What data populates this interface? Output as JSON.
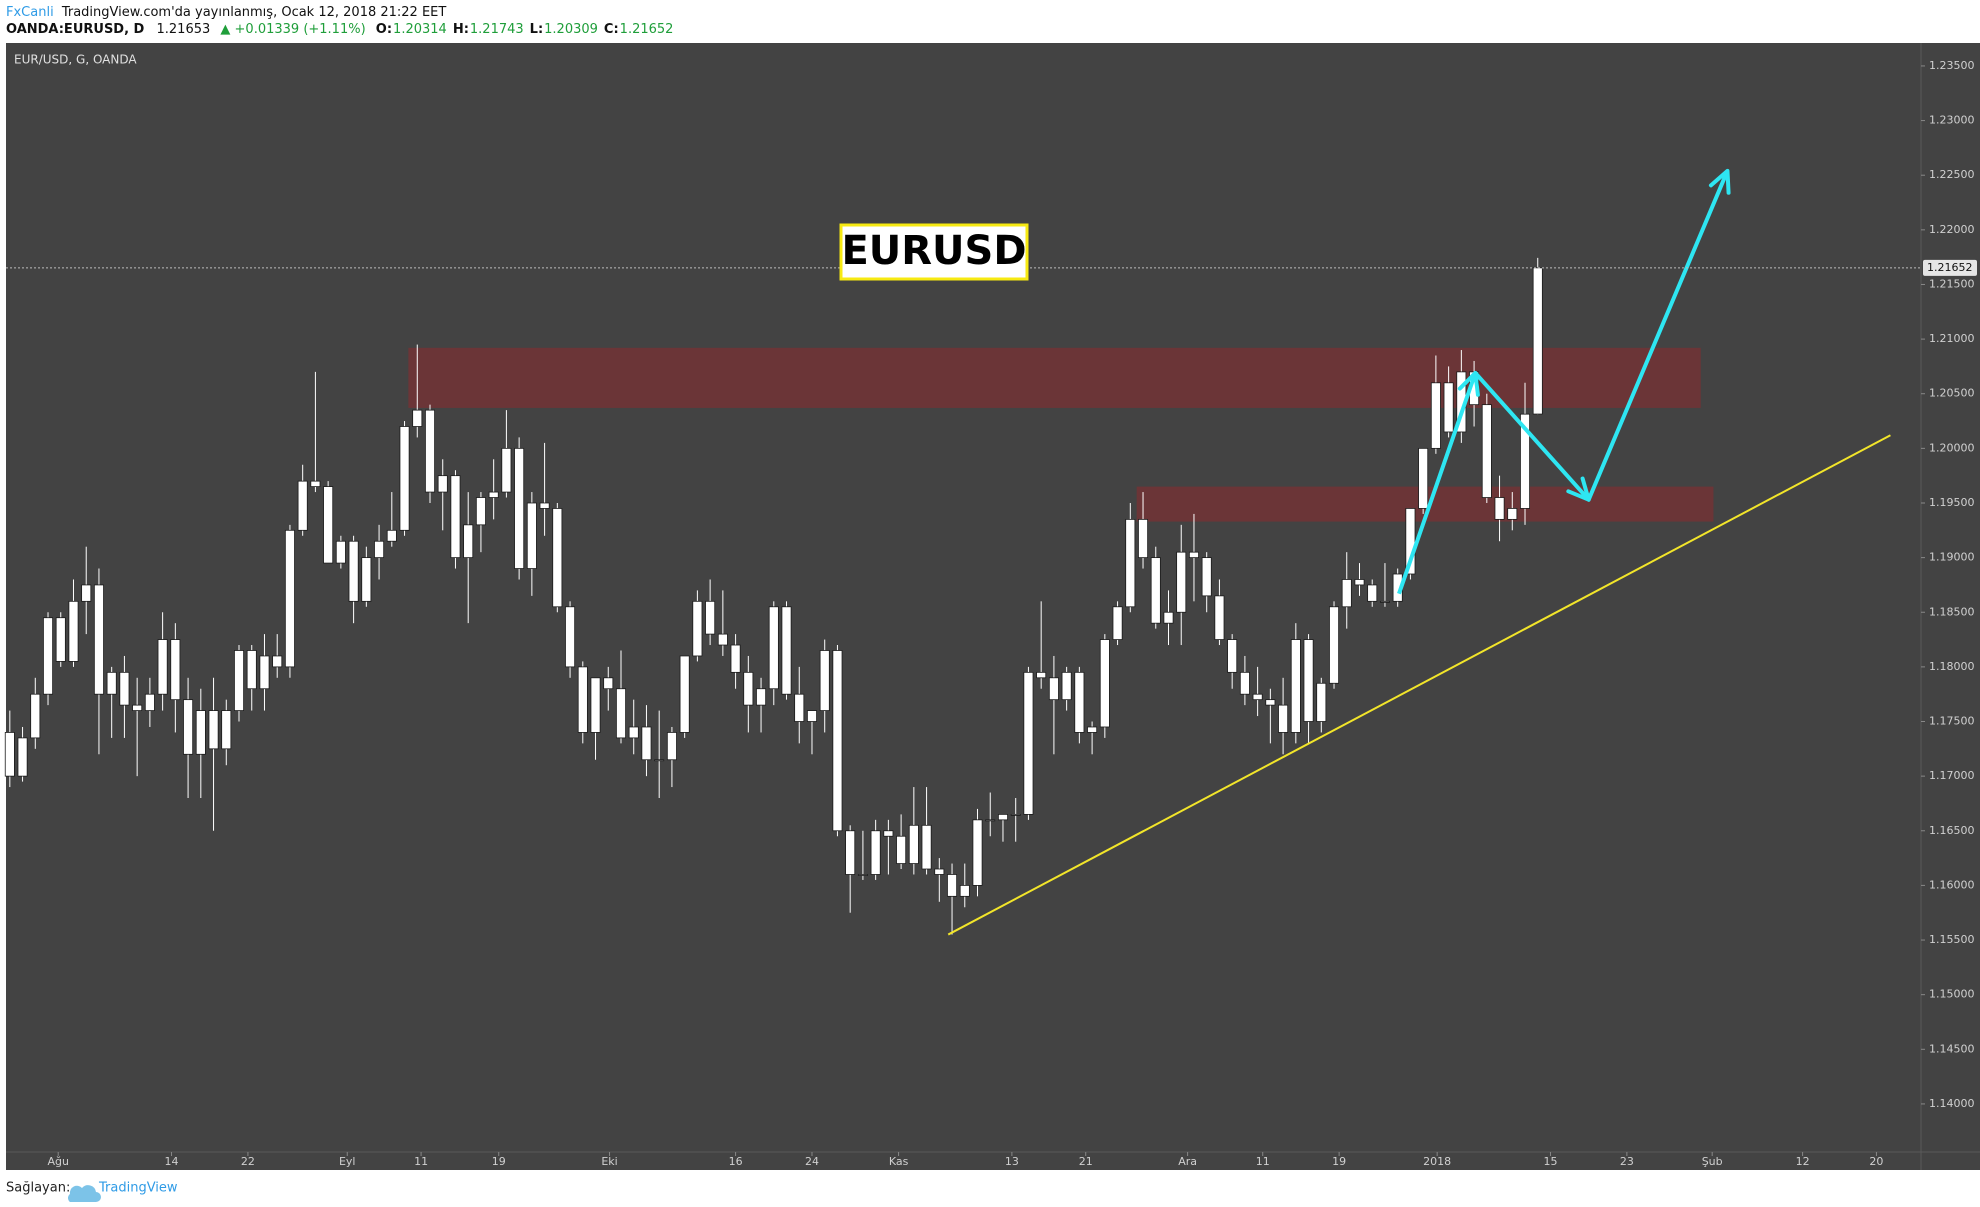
{
  "header": {
    "author": "FxCanli",
    "published": "TradingView.com'da yayınlanmış, Ocak 12, 2018 21:22 EET",
    "symbol": "OANDA:EURUSD, D",
    "last": "1.21653",
    "change": "▲ +0.01339 (+1.11%)",
    "ohlc": [
      {
        "label": "O:",
        "value": "1.20314"
      },
      {
        "label": "H:",
        "value": "1.21743"
      },
      {
        "label": "L:",
        "value": "1.20309"
      },
      {
        "label": "C:",
        "value": "1.21652"
      }
    ]
  },
  "chart_data": {
    "type": "candlestick",
    "title": "EUR/USD, G, OANDA",
    "annotation": "EURUSD",
    "color": "#ffffff",
    "border_color": "#1a1a1a",
    "open": [
      1.174,
      1.17,
      1.1735,
      1.1775,
      1.1845,
      1.1805,
      1.186,
      1.1875,
      1.1775,
      1.1795,
      1.1765,
      1.176,
      1.1775,
      1.1825,
      1.177,
      1.172,
      1.176,
      1.1725,
      1.176,
      1.1815,
      1.178,
      1.181,
      1.18,
      1.1925,
      1.197,
      1.1965,
      1.1895,
      1.1915,
      1.186,
      1.19,
      1.1915,
      1.1925,
      1.202,
      1.2035,
      1.196,
      1.1975,
      1.19,
      1.193,
      1.1955,
      1.196,
      1.2,
      1.189,
      1.195,
      1.1945,
      1.1855,
      1.18,
      1.174,
      1.179,
      1.178,
      1.1735,
      1.1745,
      1.1715,
      1.1715,
      1.174,
      1.181,
      1.186,
      1.183,
      1.182,
      1.1795,
      1.1765,
      1.178,
      1.1855,
      1.1775,
      1.175,
      1.176,
      1.1815,
      1.165,
      1.161,
      1.161,
      1.165,
      1.1645,
      1.162,
      1.1655,
      1.1615,
      1.161,
      1.159,
      1.16,
      1.166,
      1.166,
      1.1665,
      1.1665,
      1.1795,
      1.179,
      1.177,
      1.1795,
      1.174,
      1.1745,
      1.1825,
      1.1855,
      1.1935,
      1.19,
      1.184,
      1.185,
      1.1905,
      1.19,
      1.1865,
      1.1825,
      1.1795,
      1.1775,
      1.177,
      1.1765,
      1.174,
      1.1825,
      1.175,
      1.1785,
      1.1855,
      1.188,
      1.1875,
      1.186,
      1.186,
      1.1885,
      1.1945,
      1.2,
      1.206,
      1.2015,
      1.207,
      1.204,
      1.1955,
      1.1935,
      1.1945,
      1.20314
    ],
    "high": [
      1.176,
      1.1745,
      1.179,
      1.185,
      1.185,
      1.188,
      1.191,
      1.189,
      1.18,
      1.181,
      1.179,
      1.179,
      1.185,
      1.184,
      1.179,
      1.178,
      1.179,
      1.177,
      1.182,
      1.182,
      1.183,
      1.183,
      1.193,
      1.1985,
      1.207,
      1.197,
      1.192,
      1.192,
      1.191,
      1.193,
      1.196,
      1.2025,
      1.2095,
      1.204,
      1.199,
      1.198,
      1.196,
      1.196,
      1.199,
      1.2035,
      1.201,
      1.196,
      1.2005,
      1.195,
      1.186,
      1.1805,
      1.179,
      1.18,
      1.1815,
      1.177,
      1.1765,
      1.176,
      1.1745,
      1.181,
      1.187,
      1.188,
      1.187,
      1.183,
      1.181,
      1.179,
      1.186,
      1.186,
      1.18,
      1.176,
      1.1825,
      1.182,
      1.1655,
      1.165,
      1.166,
      1.166,
      1.1665,
      1.169,
      1.169,
      1.1625,
      1.162,
      1.162,
      1.167,
      1.1685,
      1.1665,
      1.168,
      1.18,
      1.186,
      1.181,
      1.18,
      1.18,
      1.175,
      1.183,
      1.186,
      1.195,
      1.196,
      1.191,
      1.187,
      1.193,
      1.194,
      1.1905,
      1.188,
      1.183,
      1.181,
      1.18,
      1.178,
      1.179,
      1.184,
      1.183,
      1.179,
      1.186,
      1.1905,
      1.1895,
      1.188,
      1.1895,
      1.189,
      1.1945,
      1.2,
      1.2085,
      1.2075,
      1.209,
      1.208,
      1.205,
      1.1975,
      1.196,
      1.206,
      1.21743
    ],
    "low": [
      1.169,
      1.1695,
      1.1725,
      1.1765,
      1.18,
      1.18,
      1.183,
      1.172,
      1.1735,
      1.1735,
      1.17,
      1.1745,
      1.176,
      1.174,
      1.168,
      1.168,
      1.165,
      1.171,
      1.175,
      1.176,
      1.176,
      1.179,
      1.179,
      1.192,
      1.196,
      1.1895,
      1.189,
      1.184,
      1.1855,
      1.188,
      1.191,
      1.192,
      1.201,
      1.195,
      1.1925,
      1.189,
      1.184,
      1.1905,
      1.1935,
      1.1955,
      1.188,
      1.1865,
      1.192,
      1.185,
      1.179,
      1.173,
      1.1715,
      1.176,
      1.173,
      1.172,
      1.17,
      1.168,
      1.169,
      1.1735,
      1.1805,
      1.182,
      1.181,
      1.178,
      1.174,
      1.174,
      1.1765,
      1.177,
      1.173,
      1.172,
      1.174,
      1.1645,
      1.1575,
      1.1605,
      1.1605,
      1.161,
      1.1615,
      1.161,
      1.161,
      1.1585,
      1.1555,
      1.158,
      1.159,
      1.1645,
      1.164,
      1.164,
      1.166,
      1.178,
      1.172,
      1.176,
      1.173,
      1.172,
      1.1735,
      1.182,
      1.185,
      1.189,
      1.1835,
      1.182,
      1.182,
      1.186,
      1.185,
      1.182,
      1.178,
      1.1765,
      1.1755,
      1.173,
      1.172,
      1.173,
      1.173,
      1.174,
      1.178,
      1.1835,
      1.1865,
      1.1855,
      1.1855,
      1.1855,
      1.188,
      1.194,
      1.1995,
      1.201,
      1.2005,
      1.202,
      1.195,
      1.1915,
      1.1925,
      1.193,
      1.20309
    ],
    "close": [
      1.17,
      1.1735,
      1.1775,
      1.1845,
      1.1805,
      1.186,
      1.1875,
      1.1775,
      1.1795,
      1.1765,
      1.176,
      1.1775,
      1.1825,
      1.177,
      1.172,
      1.176,
      1.1725,
      1.176,
      1.1815,
      1.178,
      1.181,
      1.18,
      1.1925,
      1.197,
      1.1965,
      1.1895,
      1.1915,
      1.186,
      1.19,
      1.1915,
      1.1925,
      1.202,
      1.2035,
      1.196,
      1.1975,
      1.19,
      1.193,
      1.1955,
      1.196,
      1.2,
      1.189,
      1.195,
      1.1945,
      1.1855,
      1.18,
      1.174,
      1.179,
      1.178,
      1.1735,
      1.1745,
      1.1715,
      1.1715,
      1.174,
      1.181,
      1.186,
      1.183,
      1.182,
      1.1795,
      1.1765,
      1.178,
      1.1855,
      1.1775,
      1.175,
      1.176,
      1.1815,
      1.165,
      1.161,
      1.161,
      1.165,
      1.1645,
      1.162,
      1.1655,
      1.1615,
      1.161,
      1.159,
      1.16,
      1.166,
      1.166,
      1.1665,
      1.1665,
      1.1795,
      1.179,
      1.177,
      1.1795,
      1.174,
      1.1745,
      1.1825,
      1.1855,
      1.1935,
      1.19,
      1.184,
      1.185,
      1.1905,
      1.19,
      1.1865,
      1.1825,
      1.1795,
      1.1775,
      1.177,
      1.1765,
      1.174,
      1.1825,
      1.175,
      1.1785,
      1.1855,
      1.188,
      1.1875,
      1.186,
      1.186,
      1.1885,
      1.1945,
      1.2,
      1.206,
      1.2015,
      1.207,
      1.204,
      1.1955,
      1.1935,
      1.1945,
      1.20313,
      1.21652
    ],
    "xlim": [
      -0.3,
      150.1
    ],
    "xticks": [
      {
        "value": 3.8,
        "label": "Ağu"
      },
      {
        "value": 12.7,
        "label": "14"
      },
      {
        "value": 18.7,
        "label": "22"
      },
      {
        "value": 26.5,
        "label": "Eyl"
      },
      {
        "value": 32.3,
        "label": "11"
      },
      {
        "value": 38.4,
        "label": "19"
      },
      {
        "value": 47.1,
        "label": "Eki"
      },
      {
        "value": 57.0,
        "label": "16"
      },
      {
        "value": 63.0,
        "label": "24"
      },
      {
        "value": 69.8,
        "label": "Kas"
      },
      {
        "value": 78.7,
        "label": "13"
      },
      {
        "value": 84.5,
        "label": "21"
      },
      {
        "value": 92.5,
        "label": "Ara"
      },
      {
        "value": 98.4,
        "label": "11"
      },
      {
        "value": 104.4,
        "label": "19"
      },
      {
        "value": 112.1,
        "label": "2018"
      },
      {
        "value": 121.0,
        "label": "15"
      },
      {
        "value": 127.0,
        "label": "23"
      },
      {
        "value": 133.7,
        "label": "Şub"
      },
      {
        "value": 140.8,
        "label": "12"
      },
      {
        "value": 146.6,
        "label": "20"
      }
    ],
    "ylim": [
      1.1356,
      1.2371
    ],
    "yticks": [
      {
        "value": 1.235,
        "label": "1.23500"
      },
      {
        "value": 1.23,
        "label": "1.23000"
      },
      {
        "value": 1.225,
        "label": "1.22500"
      },
      {
        "value": 1.22,
        "label": "1.22000"
      },
      {
        "value": 1.215,
        "label": "1.21500"
      },
      {
        "value": 1.21,
        "label": "1.21000"
      },
      {
        "value": 1.205,
        "label": "1.20500"
      },
      {
        "value": 1.2,
        "label": "1.20000"
      },
      {
        "value": 1.195,
        "label": "1.19500"
      },
      {
        "value": 1.19,
        "label": "1.19000"
      },
      {
        "value": 1.185,
        "label": "1.18500"
      },
      {
        "value": 1.18,
        "label": "1.18000"
      },
      {
        "value": 1.175,
        "label": "1.17500"
      },
      {
        "value": 1.17,
        "label": "1.17000"
      },
      {
        "value": 1.165,
        "label": "1.16500"
      },
      {
        "value": 1.16,
        "label": "1.16000"
      },
      {
        "value": 1.155,
        "label": "1.15500"
      },
      {
        "value": 1.15,
        "label": "1.15000"
      },
      {
        "value": 1.145,
        "label": "1.14500"
      },
      {
        "value": 1.14,
        "label": "1.14000"
      }
    ],
    "zones": [
      {
        "x": [
          31.3,
          132.8
        ],
        "y": [
          1.2037,
          1.2092
        ],
        "color": "#6b3537"
      },
      {
        "x": [
          88.5,
          133.8
        ],
        "y": [
          1.1933,
          1.1965
        ],
        "color": "#6b3537"
      }
    ],
    "trendline": {
      "x": [
        73.7,
        147.7
      ],
      "y": [
        1.1555,
        1.2012
      ],
      "color": "#f2e52a"
    },
    "arrow": {
      "x": [
        109.1,
        115.1,
        124.0,
        134.9
      ],
      "y": [
        1.1867,
        1.2069,
        1.1953,
        1.2254
      ],
      "color": "#2ee6f2"
    }
  },
  "footer": {
    "label": "Sağlayan:",
    "brand": "TradingView"
  }
}
